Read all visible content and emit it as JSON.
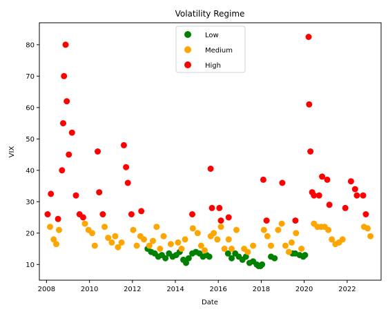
{
  "chart_data": {
    "type": "scatter",
    "title": "Volatility Regime",
    "xlabel": "Date",
    "ylabel": "VIX",
    "xlim": [
      "2007-09-01",
      "2023-08-01"
    ],
    "ylim": [
      5,
      87
    ],
    "x_ticks": [
      "2008",
      "2010",
      "2012",
      "2014",
      "2016",
      "2018",
      "2020",
      "2022"
    ],
    "y_ticks": [
      10,
      20,
      30,
      40,
      50,
      60,
      70,
      80
    ],
    "grid": false,
    "legend": {
      "position": "top-center"
    },
    "colors": {
      "Low": "#008000",
      "Medium": "#ffa500",
      "High": "#ff0000"
    },
    "series": [
      {
        "name": "Low",
        "color": "#008000",
        "points": [
          [
            "2012-09-15",
            15
          ],
          [
            "2012-11-15",
            14
          ],
          [
            "2013-01-15",
            13.5
          ],
          [
            "2013-03-15",
            12.5
          ],
          [
            "2013-05-15",
            13
          ],
          [
            "2013-07-15",
            12
          ],
          [
            "2013-09-15",
            13.5
          ],
          [
            "2013-11-15",
            12.5
          ],
          [
            "2014-01-15",
            13
          ],
          [
            "2014-03-15",
            14
          ],
          [
            "2014-05-15",
            11.5
          ],
          [
            "2014-07-01",
            10.5
          ],
          [
            "2014-08-15",
            12
          ],
          [
            "2014-10-15",
            13.5
          ],
          [
            "2014-12-15",
            14
          ],
          [
            "2015-02-15",
            13.5
          ],
          [
            "2015-04-15",
            12.5
          ],
          [
            "2015-06-15",
            13
          ],
          [
            "2015-08-01",
            12.5
          ],
          [
            "2016-06-15",
            13.5
          ],
          [
            "2016-08-15",
            12
          ],
          [
            "2016-10-15",
            13.5
          ],
          [
            "2016-12-15",
            12.5
          ],
          [
            "2017-02-15",
            11.5
          ],
          [
            "2017-04-15",
            12.5
          ],
          [
            "2017-06-15",
            10.5
          ],
          [
            "2017-08-15",
            11
          ],
          [
            "2017-10-15",
            10
          ],
          [
            "2017-11-15",
            9.5
          ],
          [
            "2017-12-20",
            9.5
          ],
          [
            "2018-01-15",
            10
          ],
          [
            "2018-06-15",
            12.5
          ],
          [
            "2018-08-15",
            12
          ],
          [
            "2019-06-15",
            13.5
          ],
          [
            "2019-08-01",
            13.5
          ],
          [
            "2019-10-15",
            13
          ],
          [
            "2019-12-15",
            12.5
          ],
          [
            "2020-01-15",
            13
          ]
        ]
      },
      {
        "name": "Medium",
        "color": "#ffa500",
        "points": [
          [
            "2008-03-01",
            22
          ],
          [
            "2008-05-01",
            18
          ],
          [
            "2008-06-15",
            16.5
          ],
          [
            "2008-08-01",
            21
          ],
          [
            "2009-10-15",
            23
          ],
          [
            "2009-12-15",
            21
          ],
          [
            "2010-02-15",
            20
          ],
          [
            "2010-04-01",
            16
          ],
          [
            "2010-09-15",
            22
          ],
          [
            "2010-11-15",
            18.5
          ],
          [
            "2011-01-15",
            17
          ],
          [
            "2011-03-15",
            19
          ],
          [
            "2011-05-01",
            15.5
          ],
          [
            "2011-07-01",
            17
          ],
          [
            "2012-01-15",
            21
          ],
          [
            "2012-03-15",
            16
          ],
          [
            "2012-05-15",
            19
          ],
          [
            "2012-07-15",
            18
          ],
          [
            "2012-10-15",
            16
          ],
          [
            "2012-12-15",
            17.5
          ],
          [
            "2013-02-15",
            22
          ],
          [
            "2013-04-15",
            15
          ],
          [
            "2013-06-15",
            19
          ],
          [
            "2013-10-15",
            16.5
          ],
          [
            "2014-02-15",
            17
          ],
          [
            "2014-04-15",
            15
          ],
          [
            "2014-06-15",
            18
          ],
          [
            "2014-10-25",
            21.5
          ],
          [
            "2015-01-15",
            20
          ],
          [
            "2015-03-15",
            16
          ],
          [
            "2015-05-15",
            14.5
          ],
          [
            "2015-08-25",
            19
          ],
          [
            "2015-10-15",
            20
          ],
          [
            "2015-12-15",
            18
          ],
          [
            "2016-02-15",
            22
          ],
          [
            "2016-04-15",
            15
          ],
          [
            "2016-06-25",
            18
          ],
          [
            "2016-08-15",
            15
          ],
          [
            "2016-11-05",
            21
          ],
          [
            "2017-03-15",
            15
          ],
          [
            "2017-05-15",
            14
          ],
          [
            "2017-08-15",
            16
          ],
          [
            "2018-02-15",
            21
          ],
          [
            "2018-04-15",
            19
          ],
          [
            "2018-06-15",
            16
          ],
          [
            "2018-10-15",
            21
          ],
          [
            "2018-12-15",
            23
          ],
          [
            "2019-02-15",
            16
          ],
          [
            "2019-04-15",
            14
          ],
          [
            "2019-06-01",
            17
          ],
          [
            "2019-08-15",
            20
          ],
          [
            "2019-11-15",
            15
          ],
          [
            "2020-06-15",
            23
          ],
          [
            "2020-08-15",
            22
          ],
          [
            "2020-10-15",
            22
          ],
          [
            "2020-12-15",
            22
          ],
          [
            "2021-02-15",
            21
          ],
          [
            "2021-04-15",
            18
          ],
          [
            "2021-06-15",
            16.5
          ],
          [
            "2021-08-15",
            17
          ],
          [
            "2021-10-15",
            18
          ],
          [
            "2022-10-15",
            22
          ],
          [
            "2022-12-15",
            21.5
          ],
          [
            "2023-02-01",
            19
          ]
        ]
      },
      {
        "name": "High",
        "color": "#ff0000",
        "points": [
          [
            "2008-01-20",
            26
          ],
          [
            "2008-03-15",
            32.5
          ],
          [
            "2008-07-15",
            24.5
          ],
          [
            "2008-09-20",
            40
          ],
          [
            "2008-10-10",
            55
          ],
          [
            "2008-10-24",
            70
          ],
          [
            "2008-11-20",
            80
          ],
          [
            "2008-12-10",
            62
          ],
          [
            "2009-01-15",
            45
          ],
          [
            "2009-03-10",
            52
          ],
          [
            "2009-05-15",
            32
          ],
          [
            "2009-07-15",
            26
          ],
          [
            "2009-09-15",
            25
          ],
          [
            "2010-05-20",
            46
          ],
          [
            "2010-06-15",
            33
          ],
          [
            "2010-08-15",
            26
          ],
          [
            "2011-08-08",
            48
          ],
          [
            "2011-09-15",
            41
          ],
          [
            "2011-10-15",
            36
          ],
          [
            "2011-12-15",
            26
          ],
          [
            "2012-06-01",
            27
          ],
          [
            "2014-10-15",
            26
          ],
          [
            "2015-08-24",
            40.5
          ],
          [
            "2015-09-15",
            28
          ],
          [
            "2016-01-20",
            28
          ],
          [
            "2016-02-15",
            24
          ],
          [
            "2016-06-25",
            25
          ],
          [
            "2018-02-05",
            37
          ],
          [
            "2018-04-01",
            24
          ],
          [
            "2018-12-24",
            36
          ],
          [
            "2019-08-05",
            24
          ],
          [
            "2020-03-16",
            82.5
          ],
          [
            "2020-03-25",
            61
          ],
          [
            "2020-04-15",
            46
          ],
          [
            "2020-05-15",
            33
          ],
          [
            "2020-06-15",
            32
          ],
          [
            "2020-09-10",
            32
          ],
          [
            "2020-11-01",
            38
          ],
          [
            "2021-01-27",
            37
          ],
          [
            "2021-03-05",
            29
          ],
          [
            "2021-12-01",
            28
          ],
          [
            "2022-03-07",
            36.5
          ],
          [
            "2022-05-15",
            34
          ],
          [
            "2022-06-15",
            32
          ],
          [
            "2022-09-30",
            32
          ],
          [
            "2022-11-15",
            26
          ]
        ]
      }
    ]
  }
}
